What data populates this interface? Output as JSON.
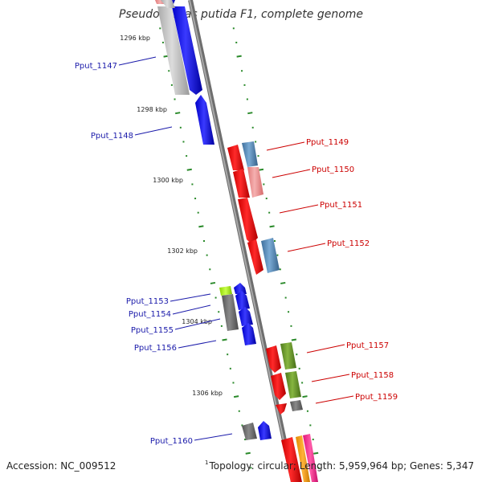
{
  "title": "Pseudomonas putida F1, complete genome",
  "footer": {
    "accession": "Accession: NC_009512",
    "superscript": "1",
    "topology": "Topology: circular; Length: 5,959,964 bp; Genes: 5,347"
  },
  "colors": {
    "backbone": "#888888",
    "forward_label": "#1a1aaa",
    "reverse_label": "#cc0000",
    "ticks": "#2a8a2a"
  },
  "scale_labels": [
    "1296 kbp",
    "1298 kbp",
    "1300 kbp",
    "1302 kbp",
    "1304 kbp",
    "1306 kbp"
  ],
  "genes": [
    {
      "label": "Pput_1147",
      "side": "left"
    },
    {
      "label": "Pput_1148",
      "side": "left"
    },
    {
      "label": "Pput_1149",
      "side": "right"
    },
    {
      "label": "Pput_1150",
      "side": "right"
    },
    {
      "label": "Pput_1151",
      "side": "right"
    },
    {
      "label": "Pput_1152",
      "side": "right"
    },
    {
      "label": "Pput_1153",
      "side": "left"
    },
    {
      "label": "Pput_1154",
      "side": "left"
    },
    {
      "label": "Pput_1155",
      "side": "left"
    },
    {
      "label": "Pput_1156",
      "side": "left"
    },
    {
      "label": "Pput_1157",
      "side": "right"
    },
    {
      "label": "Pput_1158",
      "side": "right"
    },
    {
      "label": "Pput_1159",
      "side": "right"
    },
    {
      "label": "Pput_1160",
      "side": "left"
    }
  ]
}
